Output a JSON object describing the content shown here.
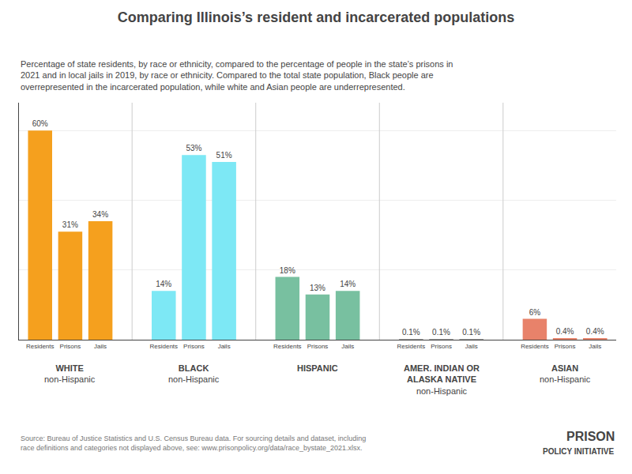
{
  "chart_data": {
    "type": "bar",
    "title": "Comparing Illinois’s resident and incarcerated populations",
    "subtitle": "Percentage of state residents, by race or ethnicity, compared to the percentage of people in the state’s prisons in\n2021 and in local jails in 2019, by race or ethnicity. Compared to the total state population, Black people are\noverrepresented in the incarcerated population, while white and Asian people are underrepresented.",
    "source": "Source: Bureau of Justice Statistics and U.S. Census Bureau data. For sourcing details and dataset, including\nrace definitions and categories not displayed above, see: www.prisonpolicy.org/data/race_bystate_2021.xlsx.",
    "annotations": [
      "PRISON",
      "POLICY INITIATIVE"
    ],
    "groups": [
      {
        "name": "WHITE",
        "note": "non-Hispanic",
        "color": "#f5a01e",
        "categories": [
          "Residents",
          "Prisons",
          "Jails"
        ],
        "values": [
          60,
          31,
          34
        ],
        "value_labels": [
          "60%",
          "31%",
          "34%"
        ]
      },
      {
        "name": "BLACK",
        "note": "non-Hispanic",
        "color": "#7de8f5",
        "categories": [
          "Residents",
          "Prisons",
          "Jails"
        ],
        "values": [
          14,
          53,
          51
        ],
        "value_labels": [
          "14%",
          "53%",
          "51%"
        ]
      },
      {
        "name": "HISPANIC",
        "color": "#78c0a0",
        "categories": [
          "Residents",
          "Prisons",
          "Jails"
        ],
        "values": [
          18,
          13,
          14
        ],
        "value_labels": [
          "18%",
          "13%",
          "14%"
        ]
      },
      {
        "name": "AMER. INDIAN OR\nALASKA NATIVE",
        "note": "non-Hispanic",
        "color": "#999999",
        "categories": [
          "Residents",
          "Prisons",
          "Jails"
        ],
        "values": [
          0.1,
          0.1,
          0.1
        ],
        "value_labels": [
          "0.1%",
          "0.1%",
          "0.1%"
        ]
      },
      {
        "name": "ASIAN",
        "note": "non-Hispanic",
        "color": "#e8826a",
        "categories": [
          "Residents",
          "Prisons",
          "Jails"
        ],
        "values": [
          6,
          0.4,
          0.4
        ],
        "value_labels": [
          "6%",
          "0.4%",
          "0.4%"
        ]
      }
    ],
    "ylim": [
      0,
      68
    ],
    "yticks": [
      20,
      40,
      60
    ],
    "grid": true,
    "tick_labels": "x",
    "data_labels": true
  }
}
